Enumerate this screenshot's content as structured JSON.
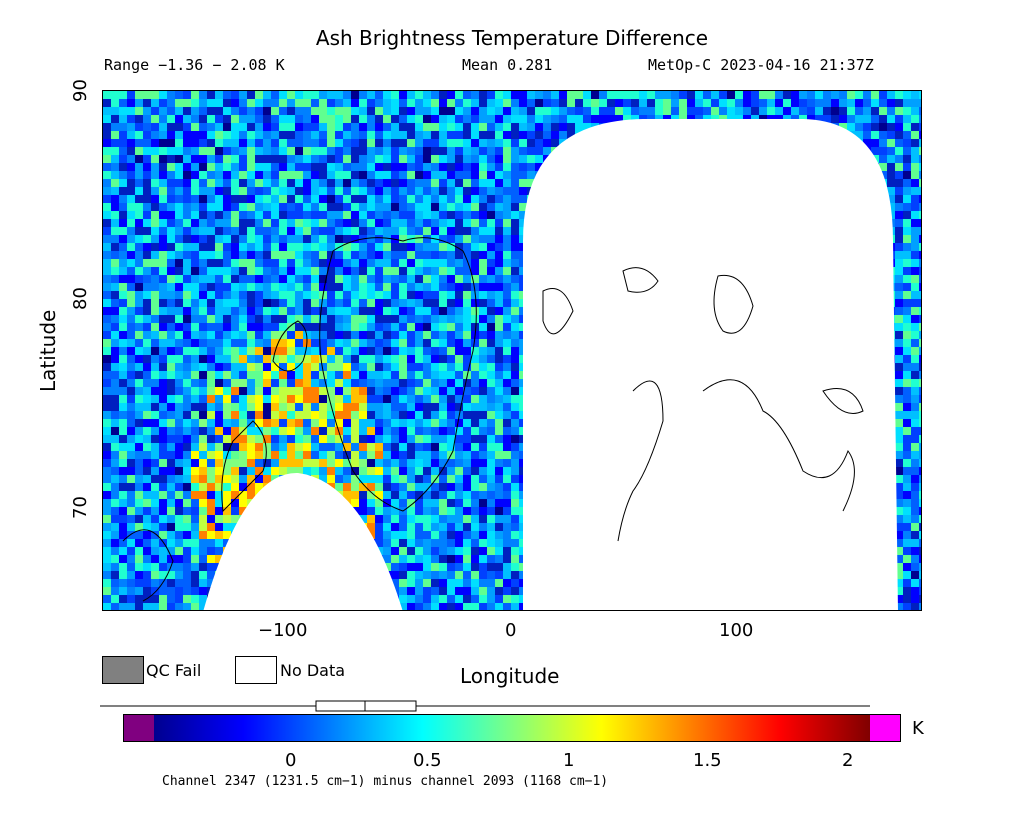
{
  "title": "Ash Brightness Temperature Difference",
  "header": {
    "range": "Range −1.36 − 2.08 K",
    "mean": "Mean 0.281",
    "satellite": "MetOp-C 2023-04-16 21:37Z"
  },
  "axes": {
    "xlabel": "Longitude",
    "ylabel": "Latitude",
    "x_ticks": [
      "−100",
      "0",
      "100"
    ],
    "y_ticks": [
      "90",
      "80",
      "70"
    ]
  },
  "legend": {
    "qc_fail": "QC Fail",
    "no_data": "No Data",
    "qc_fail_color": "#808080",
    "no_data_color": "#ffffff"
  },
  "colorbar": {
    "unit": "K",
    "ticks": [
      "0",
      "0.5",
      "1",
      "1.5",
      "2"
    ],
    "underflow_color": "#800080",
    "overflow_color": "#ff00ff",
    "colormap": [
      "#00008f",
      "#0000ff",
      "#0080ff",
      "#00ffff",
      "#80ff80",
      "#ffff00",
      "#ff8000",
      "#ff0000",
      "#800000"
    ]
  },
  "map": {
    "projection": "lon-lat",
    "lon_range": [
      -180,
      180
    ],
    "lat_range": [
      65,
      90
    ],
    "no_data_regions": [
      "eastern hemisphere swath gap",
      "southern gap near -90 to -50 lon"
    ]
  },
  "footnote": "Channel 2347 (1231.5 cm−1) minus channel 2093 (1168 cm−1)"
}
